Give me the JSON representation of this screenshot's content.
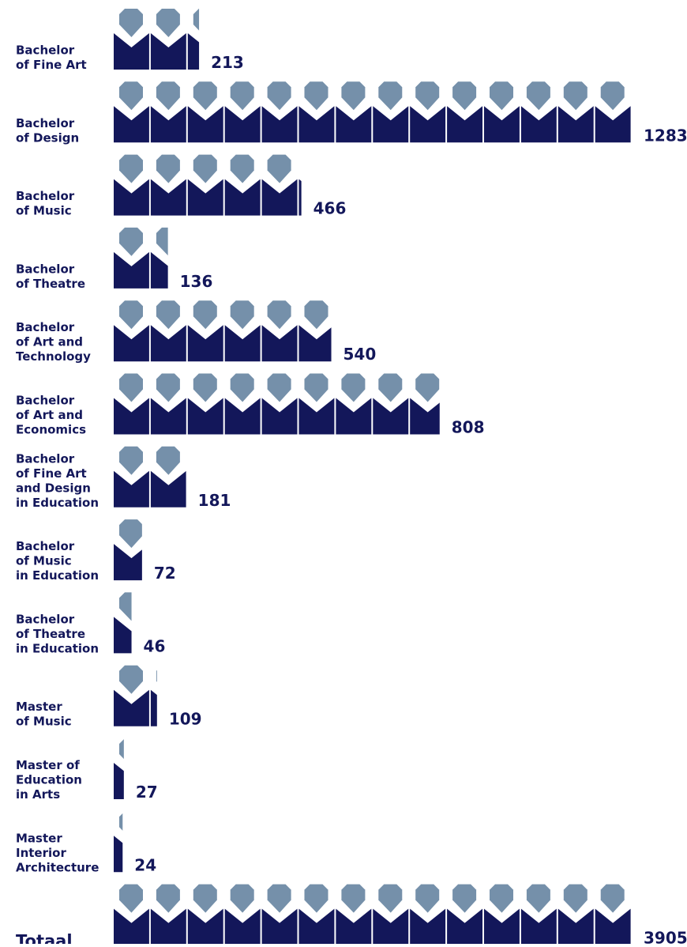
{
  "chart_data": {
    "type": "pictogram",
    "categories": [
      [
        "Bachelor",
        "of Fine Art"
      ],
      [
        "Bachelor",
        "of Design"
      ],
      [
        "Bachelor",
        "of Music"
      ],
      [
        "Bachelor",
        "of Theatre"
      ],
      [
        "Bachelor",
        "of Art and",
        "Technology"
      ],
      [
        "Bachelor",
        "of Art and",
        "Economics"
      ],
      [
        "Bachelor",
        "of Fine Art",
        "and Design",
        "in Education"
      ],
      [
        "Bachelor",
        "of Music",
        "in Education"
      ],
      [
        "Bachelor",
        "of Theatre",
        "in Education"
      ],
      [
        "Master",
        "of Music"
      ],
      [
        "Master of",
        "Education",
        "in Arts"
      ],
      [
        "Master",
        "Interior",
        "Architecture"
      ]
    ],
    "values": [
      213,
      1283,
      466,
      136,
      540,
      808,
      181,
      72,
      46,
      109,
      27,
      24
    ],
    "total": {
      "label": "Totaal",
      "value": 3905
    },
    "head_color": "#7590aa",
    "body_color": "#13175a"
  }
}
